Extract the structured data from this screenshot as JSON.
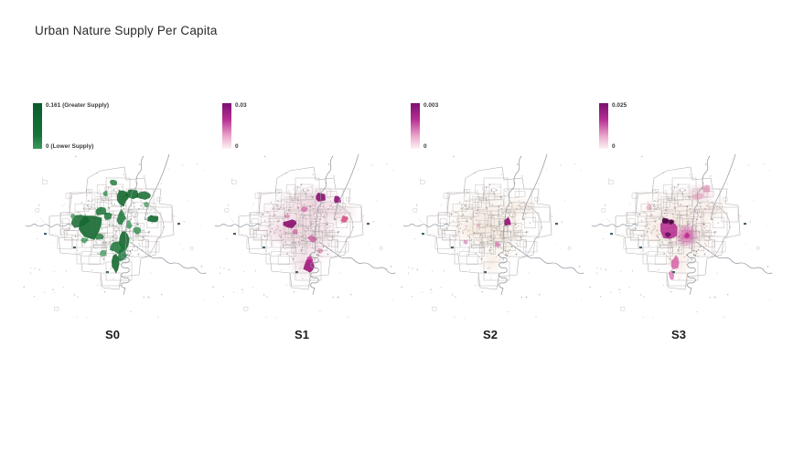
{
  "title": "Urban Nature Supply Per Capita",
  "colors": {
    "page_bg": "#ffffff",
    "title_color": "#2a2a2e",
    "map_line": "#b6aeae",
    "river": "#8a929b",
    "dark_mark": "#47656f",
    "legend_text": "#3a3a3a"
  },
  "panels": [
    {
      "id": "S0",
      "label": "S0",
      "legend": {
        "top_label": "0.161 (Greater Supply)",
        "bottom_label": "0 (Lower Supply)",
        "gradient": [
          "#0a5c2b 0%",
          "#15743a 70%",
          "#3d9a5f 100%"
        ]
      },
      "dot_tint": "#4a7d5a",
      "wash": [],
      "hotspots": [
        [
          80,
          80,
          15,
          13,
          "#15682f",
          0.9,
          0
        ],
        [
          67,
          75,
          10,
          8,
          "#15682f",
          0.85,
          0
        ],
        [
          90,
          64,
          7,
          5,
          "#1b7438",
          0.85,
          0
        ],
        [
          114,
          50,
          6,
          8,
          "#15682f",
          0.9,
          0
        ],
        [
          112,
          72,
          5,
          9,
          "#1b7438",
          0.85,
          0
        ],
        [
          116,
          95,
          6,
          11,
          "#15682f",
          0.9,
          0
        ],
        [
          113,
          113,
          5,
          7,
          "#1b7438",
          0.85,
          0
        ],
        [
          106,
          122,
          4,
          9,
          "#15682f",
          0.9,
          0
        ],
        [
          124,
          45,
          7,
          5,
          "#15682f",
          0.9,
          0
        ],
        [
          137,
          47,
          8,
          4,
          "#15682f",
          0.85,
          0
        ],
        [
          148,
          73,
          6,
          5,
          "#15682f",
          0.9,
          0
        ],
        [
          108,
          104,
          7,
          6,
          "#1b7438",
          0.85,
          0
        ],
        [
          95,
          45,
          3,
          3,
          "#2f8f4d",
          0.8,
          0
        ],
        [
          130,
          85,
          4,
          4,
          "#2f8f4d",
          0.8,
          0
        ],
        [
          88,
          92,
          5,
          4,
          "#1b7438",
          0.8,
          0
        ],
        [
          121,
          80,
          4,
          5,
          "#2f8f4d",
          0.75,
          0
        ],
        [
          98,
          70,
          5,
          4,
          "#1b7438",
          0.85,
          0
        ],
        [
          60,
          70,
          3,
          3,
          "#2f8f4d",
          0.7,
          0
        ],
        [
          140,
          57,
          3,
          3,
          "#2f8f4d",
          0.7,
          0
        ],
        [
          72,
          96,
          4,
          3,
          "#2f8f4d",
          0.75,
          0
        ],
        [
          104,
          33,
          4,
          3,
          "#1b7438",
          0.8,
          0
        ],
        [
          93,
          110,
          4,
          4,
          "#2f8f4d",
          0.7,
          0
        ]
      ]
    },
    {
      "id": "S1",
      "label": "S1",
      "legend": {
        "top_label": "0.03",
        "bottom_label": "0",
        "gradient": [
          "#7c0f72 0%",
          "#b52d92 35%",
          "#eba6cb 72%",
          "#fdf2f7 100%"
        ]
      },
      "dot_tint": "#a06b80",
      "wash": [
        [
          100,
          72,
          34,
          22,
          "#e0b0c2",
          0.4,
          1
        ],
        [
          118,
          55,
          22,
          14,
          "#e0b0c2",
          0.45,
          1
        ],
        [
          112,
          96,
          24,
          20,
          "#e0b0c2",
          0.4,
          1
        ],
        [
          105,
          122,
          12,
          14,
          "#e0b0c2",
          0.4,
          1
        ],
        [
          82,
          88,
          18,
          10,
          "#e0b0c2",
          0.4,
          1
        ],
        [
          145,
          66,
          14,
          9,
          "#e0b0c2",
          0.4,
          1
        ]
      ],
      "hotspots": [
        [
          124,
          49,
          6,
          5,
          "#8c1170",
          0.92,
          0
        ],
        [
          142,
          52,
          5,
          4,
          "#8c1170",
          0.9,
          0
        ],
        [
          91,
          78,
          8,
          5,
          "#8c1170",
          0.92,
          0
        ],
        [
          111,
          125,
          6,
          7,
          "#9c1578",
          0.9,
          0
        ],
        [
          111,
          118,
          4,
          4,
          "#b8268c",
          0.8,
          0
        ],
        [
          150,
          73,
          4,
          4,
          "#d44a7e",
          0.85,
          0
        ],
        [
          115,
          95,
          5,
          4,
          "#c2478f",
          0.7,
          0
        ],
        [
          105,
          62,
          4,
          3,
          "#c2478f",
          0.6,
          0
        ],
        [
          96,
          87,
          3,
          3,
          "#c2478f",
          0.6,
          0
        ],
        [
          123,
          108,
          3,
          3,
          "#cc5a96",
          0.5,
          0
        ],
        [
          87,
          70,
          3,
          2.5,
          "#cc5a96",
          0.5,
          0
        ]
      ]
    },
    {
      "id": "S2",
      "label": "S2",
      "legend": {
        "top_label": "0.003",
        "bottom_label": "0",
        "gradient": [
          "#7c0f72 0%",
          "#b52d92 35%",
          "#eba6cb 72%",
          "#fdf2f7 100%"
        ]
      },
      "dot_tint": "#a8887a",
      "wash": [
        [
          100,
          70,
          32,
          20,
          "#eddbca",
          0.55,
          1
        ],
        [
          113,
          95,
          20,
          16,
          "#eddbca",
          0.5,
          1
        ],
        [
          84,
          86,
          18,
          10,
          "#eddbca",
          0.5,
          1
        ],
        [
          104,
          120,
          9,
          11,
          "#eddbca",
          0.5,
          1
        ],
        [
          136,
          60,
          14,
          8,
          "#eddbca",
          0.5,
          1
        ]
      ],
      "hotspots": [
        [
          122,
          76,
          4,
          4.5,
          "#9c1578",
          0.95,
          0
        ],
        [
          111,
          101,
          3,
          3,
          "#d06ba6",
          0.7,
          0
        ],
        [
          76,
          98,
          2.5,
          2.5,
          "#d06ba6",
          0.6,
          0
        ],
        [
          90,
          80,
          2,
          2,
          "#d98ab5",
          0.5,
          0
        ]
      ]
    },
    {
      "id": "S3",
      "label": "S3",
      "legend": {
        "top_label": "0.025",
        "bottom_label": "0",
        "gradient": [
          "#7c0f72 0%",
          "#b52d92 35%",
          "#eba6cb 72%",
          "#fdf2f7 100%"
        ]
      },
      "dot_tint": "#a06b80",
      "wash": [
        [
          100,
          70,
          33,
          21,
          "#ecd5c6",
          0.5,
          1
        ],
        [
          114,
          94,
          22,
          18,
          "#ecd5c6",
          0.5,
          1
        ],
        [
          84,
          87,
          18,
          10,
          "#ecd5c6",
          0.5,
          1
        ],
        [
          103,
          122,
          10,
          13,
          "#ecd5c6",
          0.5,
          1
        ],
        [
          138,
          62,
          14,
          9,
          "#ecd5c6",
          0.5,
          1
        ],
        [
          126,
          45,
          12,
          8,
          "#dfa0b4",
          0.5,
          1
        ]
      ],
      "hotspots": [
        [
          92,
          82,
          10,
          12,
          "#b01d8a",
          0.8,
          0
        ],
        [
          88,
          75,
          3.5,
          3.5,
          "#4d0a45",
          0.95,
          0
        ],
        [
          95,
          76,
          3,
          3,
          "#4d0a45",
          0.95,
          0
        ],
        [
          91,
          90,
          4,
          3.5,
          "#6b0f5c",
          0.9,
          0
        ],
        [
          112,
          91,
          9,
          9,
          "#cc2f9a",
          0.75,
          1
        ],
        [
          112,
          91,
          3,
          3,
          "#b8268c",
          0.8,
          0
        ],
        [
          99,
          121,
          4,
          8,
          "#d0509c",
          0.75,
          0
        ],
        [
          95,
          134,
          3,
          6,
          "#d86aac",
          0.7,
          0
        ],
        [
          133,
          40,
          5,
          4,
          "#d882a8",
          0.6,
          0
        ],
        [
          125,
          48,
          7,
          4,
          "#dd93b4",
          0.5,
          0
        ],
        [
          70,
          60,
          3,
          3,
          "#d886ae",
          0.5,
          0
        ]
      ]
    }
  ]
}
